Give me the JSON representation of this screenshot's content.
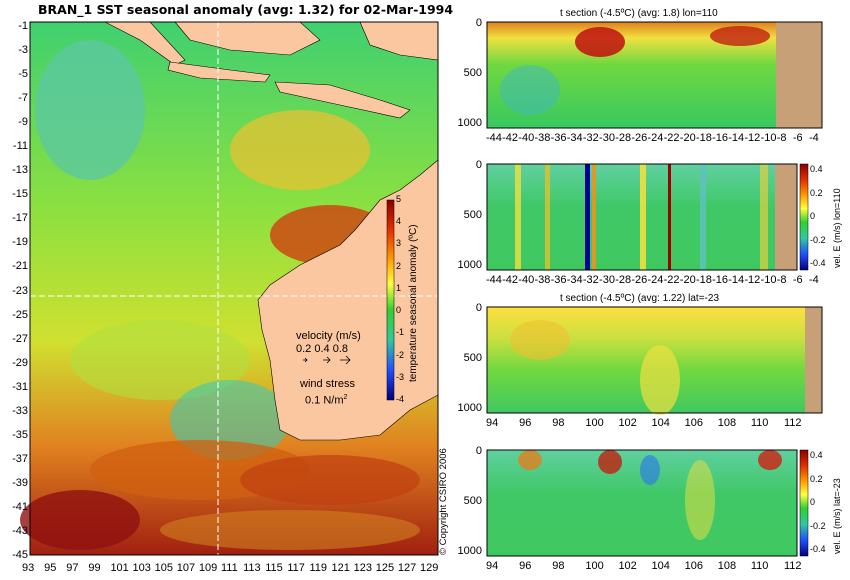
{
  "map": {
    "title": "BRAN_1 SST seasonal anomaly (avg: 1.32) for 02-Mar-1994",
    "lat_ticks": [
      "-1",
      "-3",
      "-5",
      "-7",
      "-9",
      "-11",
      "-13",
      "-15",
      "-17",
      "-19",
      "-21",
      "-23",
      "-25",
      "-27",
      "-29",
      "-31",
      "-33",
      "-35",
      "-37",
      "-39",
      "-41",
      "-43",
      "-45"
    ],
    "lon_ticks": [
      "93",
      "95",
      "97",
      "99",
      "101",
      "103",
      "105",
      "107",
      "109",
      "111",
      "113",
      "115",
      "117",
      "119",
      "121",
      "123",
      "125",
      "127",
      "129"
    ],
    "colorbar": {
      "label": "temperature seasonal anomaly (ºC)",
      "ticks": [
        "5",
        "4",
        "3",
        "2",
        "1",
        "0",
        "-1",
        "-2",
        "-3",
        "-4"
      ]
    },
    "velocity_label": "velocity (m/s)",
    "velocity_scale": "0.2 0.4 0.8",
    "wind_label": "wind stress",
    "wind_value": "0.1 N/m",
    "wind_exp": "2",
    "copyright": "© Copyright CSIRO 2006",
    "section_lon": 110,
    "section_lat": -23,
    "colors": {
      "land": "#fbc7a0",
      "ocean_mid": "#3ccc3c"
    }
  },
  "panels": [
    {
      "title": "t section (-4.5ºC) (avg: 1.8) lon=110",
      "y_ticks": [
        "0",
        "500",
        "1000"
      ],
      "x_ticks": [
        "-44",
        "-42",
        "-40",
        "-38",
        "-36",
        "-34",
        "-32",
        "-30",
        "-28",
        "-26",
        "-24",
        "-22",
        "-20",
        "-18",
        "-16",
        "-14",
        "-12",
        "-10",
        "-8",
        "-6",
        "-4"
      ],
      "colorbar": null
    },
    {
      "title": "",
      "y_ticks": [
        "0",
        "500",
        "1000"
      ],
      "x_ticks": [
        "-44",
        "-42",
        "-40",
        "-38",
        "-36",
        "-34",
        "-32",
        "-30",
        "-28",
        "-26",
        "-24",
        "-22",
        "-20",
        "-18",
        "-16",
        "-14",
        "-12",
        "-10",
        "-8",
        "-6",
        "-4"
      ],
      "colorbar": {
        "label": "vel. E (m/s) lon=110",
        "ticks": [
          "0.4",
          "0.2",
          "0",
          "-0.2",
          "-0.4"
        ]
      }
    },
    {
      "title": "t section (-4.5ºC) (avg: 1.22) lat=-23",
      "y_ticks": [
        "0",
        "500",
        "1000"
      ],
      "x_ticks": [
        "94",
        "96",
        "98",
        "100",
        "102",
        "104",
        "106",
        "108",
        "110",
        "112"
      ],
      "colorbar": null
    },
    {
      "title": "",
      "y_ticks": [
        "0",
        "500",
        "1000"
      ],
      "x_ticks": [
        "94",
        "96",
        "98",
        "100",
        "102",
        "104",
        "106",
        "108",
        "110",
        "112"
      ],
      "colorbar": {
        "label": "vel. E (m/s) lat=-23",
        "ticks": [
          "0.4",
          "0.2",
          "0",
          "-0.2",
          "-0.4"
        ]
      }
    }
  ]
}
